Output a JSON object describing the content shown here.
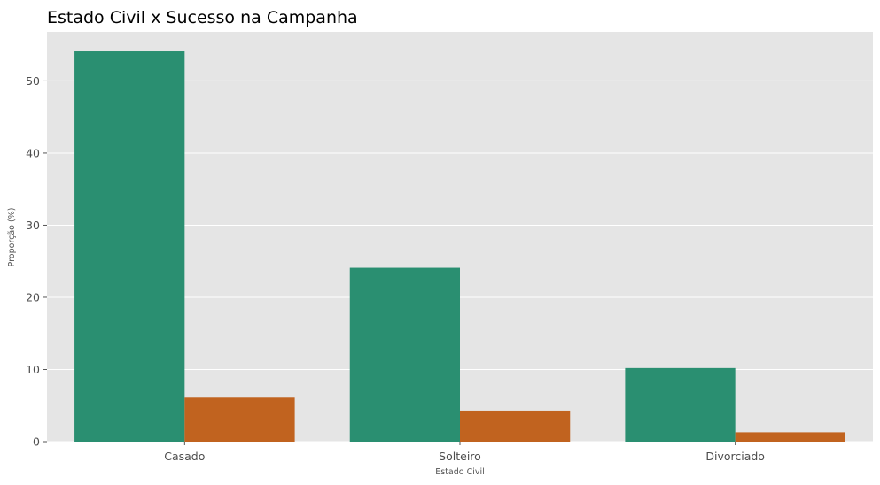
{
  "chart_data": {
    "type": "bar",
    "title": "Estado Civil x Sucesso na Campanha",
    "xlabel": "Estado Civil",
    "ylabel": "Proporção (%)",
    "categories": [
      "Casado",
      "Solteiro",
      "Divorciado"
    ],
    "series": [
      {
        "values": [
          54.1,
          24.1,
          10.2
        ],
        "color": "#2a8f71"
      },
      {
        "values": [
          6.1,
          4.3,
          1.3
        ],
        "color": "#c1631f"
      }
    ],
    "ylim": [
      0,
      56.8
    ],
    "yticks": [
      0,
      10,
      20,
      30,
      40,
      50
    ],
    "grid": true,
    "background": "#e5e5e5",
    "legend": null
  }
}
